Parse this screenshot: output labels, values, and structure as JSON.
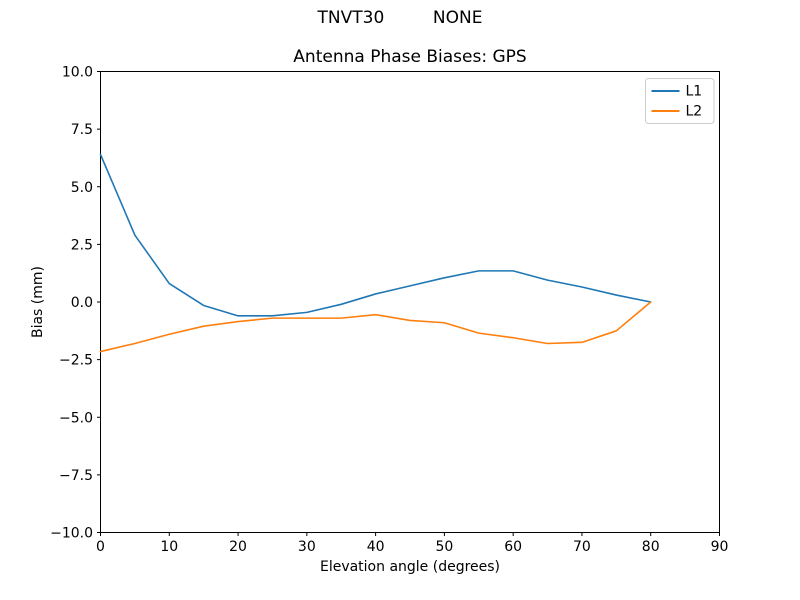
{
  "figure": {
    "suptitle": "TNVT30         NONE",
    "axes_title": "Antenna Phase Biases: GPS",
    "xlabel": "Elevation angle (degrees)",
    "ylabel": "Bias (mm)"
  },
  "legend": {
    "location": "upper right",
    "items": [
      {
        "label": "L1",
        "color": "#1f77b4"
      },
      {
        "label": "L2",
        "color": "#ff7f0e"
      }
    ]
  },
  "chart_data": {
    "type": "line",
    "title": "Antenna Phase Biases: GPS",
    "suptitle": "TNVT30         NONE",
    "xlabel": "Elevation angle (degrees)",
    "ylabel": "Bias (mm)",
    "xlim": [
      0,
      90
    ],
    "ylim": [
      -10,
      10
    ],
    "x_ticks": [
      0,
      10,
      20,
      30,
      40,
      50,
      60,
      70,
      80,
      90
    ],
    "y_ticks": [
      -10,
      -7.5,
      -5,
      -2.5,
      0,
      2.5,
      5,
      7.5,
      10
    ],
    "y_tick_labels": [
      "−10.0",
      "−7.5",
      "−5.0",
      "−2.5",
      "0.0",
      "2.5",
      "5.0",
      "7.5",
      "10.0"
    ],
    "grid": false,
    "legend_position": "upper right",
    "x": [
      0,
      5,
      10,
      15,
      20,
      25,
      30,
      35,
      40,
      45,
      50,
      55,
      60,
      65,
      70,
      75,
      80
    ],
    "series": [
      {
        "name": "L1",
        "color": "#1f77b4",
        "values": [
          6.4,
          2.9,
          0.8,
          -0.15,
          -0.6,
          -0.6,
          -0.45,
          -0.1,
          0.35,
          0.7,
          1.05,
          1.35,
          1.35,
          0.95,
          0.65,
          0.3,
          0.0
        ]
      },
      {
        "name": "L2",
        "color": "#ff7f0e",
        "values": [
          -2.15,
          -1.8,
          -1.4,
          -1.05,
          -0.85,
          -0.7,
          -0.7,
          -0.7,
          -0.55,
          -0.8,
          -0.9,
          -1.35,
          -1.55,
          -1.8,
          -1.75,
          -1.25,
          0.0
        ]
      }
    ]
  }
}
